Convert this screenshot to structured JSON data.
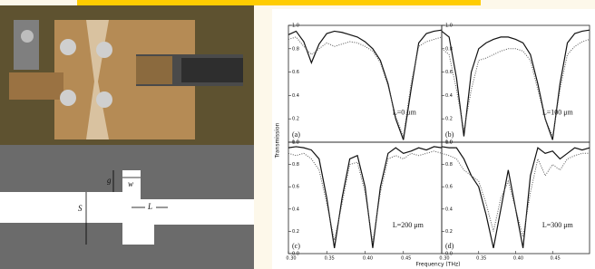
{
  "diagram": {
    "labels": {
      "gap": "g",
      "width": "w",
      "spacing": "S",
      "offset": "L"
    }
  },
  "figure_axes": {
    "y_label": "Transmission",
    "x_label": "Frequency (THz)"
  },
  "chart_data": [
    {
      "type": "line",
      "panel_label": "(a)",
      "annotation": "L=0 μm",
      "x": [
        0.3,
        0.31,
        0.32,
        0.33,
        0.34,
        0.35,
        0.36,
        0.37,
        0.38,
        0.39,
        0.4,
        0.41,
        0.42,
        0.43,
        0.44,
        0.45,
        0.46,
        0.47,
        0.48,
        0.49,
        0.5
      ],
      "series": [
        {
          "color": "#111111",
          "style": "solid",
          "values": [
            0.92,
            0.95,
            0.86,
            0.68,
            0.84,
            0.93,
            0.95,
            0.94,
            0.92,
            0.9,
            0.86,
            0.8,
            0.7,
            0.5,
            0.2,
            0.02,
            0.45,
            0.85,
            0.93,
            0.95,
            0.96
          ]
        },
        {
          "color": "#555555",
          "style": "dotted",
          "values": [
            0.88,
            0.9,
            0.82,
            0.75,
            0.8,
            0.85,
            0.82,
            0.84,
            0.86,
            0.85,
            0.82,
            0.78,
            0.68,
            0.48,
            0.22,
            0.05,
            0.5,
            0.82,
            0.86,
            0.88,
            0.9
          ]
        }
      ],
      "xlim": [
        0.3,
        0.5
      ],
      "ylim": [
        0,
        1
      ],
      "yticks": [
        {
          "value": 0,
          "label": "0.0"
        },
        0.2,
        0.4,
        0.6,
        0.8,
        {
          "value": 1,
          "label": "1.0"
        }
      ]
    },
    {
      "type": "line",
      "panel_label": "(b)",
      "annotation": "L=100 μm",
      "x": [
        0.3,
        0.31,
        0.32,
        0.33,
        0.34,
        0.35,
        0.36,
        0.37,
        0.38,
        0.39,
        0.4,
        0.41,
        0.42,
        0.43,
        0.44,
        0.45,
        0.46,
        0.47,
        0.48,
        0.49,
        0.5
      ],
      "series": [
        {
          "color": "#111111",
          "style": "solid",
          "values": [
            0.95,
            0.9,
            0.55,
            0.05,
            0.6,
            0.8,
            0.85,
            0.88,
            0.9,
            0.9,
            0.88,
            0.85,
            0.75,
            0.5,
            0.2,
            0.02,
            0.5,
            0.85,
            0.93,
            0.95,
            0.96
          ]
        },
        {
          "color": "#555555",
          "style": "dotted",
          "values": [
            0.8,
            0.75,
            0.45,
            0.1,
            0.45,
            0.7,
            0.72,
            0.75,
            0.78,
            0.8,
            0.8,
            0.78,
            0.7,
            0.45,
            0.2,
            0.05,
            0.45,
            0.75,
            0.82,
            0.86,
            0.88
          ]
        }
      ],
      "xlim": [
        0.3,
        0.5
      ],
      "ylim": [
        0,
        1
      ],
      "yticks": [
        {
          "value": 0,
          "label": "0.0"
        },
        0.2,
        0.4,
        0.6,
        0.8,
        {
          "value": 1,
          "label": "1.0"
        }
      ]
    },
    {
      "type": "line",
      "panel_label": "(c)",
      "annotation": "L=200 μm",
      "x": [
        0.3,
        0.31,
        0.32,
        0.33,
        0.34,
        0.35,
        0.36,
        0.37,
        0.38,
        0.39,
        0.4,
        0.41,
        0.42,
        0.43,
        0.44,
        0.45,
        0.46,
        0.47,
        0.48,
        0.49,
        0.5
      ],
      "series": [
        {
          "color": "#111111",
          "style": "solid",
          "values": [
            0.95,
            0.96,
            0.95,
            0.93,
            0.85,
            0.5,
            0.05,
            0.5,
            0.85,
            0.88,
            0.6,
            0.05,
            0.6,
            0.9,
            0.95,
            0.9,
            0.92,
            0.95,
            0.93,
            0.96,
            0.95
          ]
        },
        {
          "color": "#555555",
          "style": "dotted",
          "values": [
            0.9,
            0.88,
            0.9,
            0.85,
            0.75,
            0.45,
            0.12,
            0.45,
            0.8,
            0.82,
            0.55,
            0.1,
            0.55,
            0.85,
            0.88,
            0.85,
            0.9,
            0.88,
            0.9,
            0.92,
            0.9
          ]
        }
      ],
      "xlim": [
        0.3,
        0.5
      ],
      "ylim": [
        0,
        1
      ],
      "yticks": [
        {
          "value": 0,
          "label": "0.0"
        },
        0.2,
        0.4,
        0.6,
        0.8,
        {
          "value": 1,
          "label": "1.0"
        }
      ],
      "xticks": [
        {
          "value": 0.3,
          "label": "0.30"
        },
        0.35,
        {
          "value": 0.4,
          "label": "0.40"
        },
        0.45
      ]
    },
    {
      "type": "line",
      "panel_label": "(d)",
      "annotation": "L=300 μm",
      "x": [
        0.3,
        0.31,
        0.32,
        0.33,
        0.34,
        0.35,
        0.36,
        0.37,
        0.38,
        0.39,
        0.4,
        0.41,
        0.42,
        0.43,
        0.44,
        0.45,
        0.46,
        0.47,
        0.48,
        0.49,
        0.5
      ],
      "series": [
        {
          "color": "#111111",
          "style": "solid",
          "values": [
            0.96,
            0.95,
            0.95,
            0.85,
            0.7,
            0.6,
            0.35,
            0.05,
            0.4,
            0.75,
            0.4,
            0.05,
            0.7,
            0.95,
            0.9,
            0.92,
            0.85,
            0.9,
            0.95,
            0.93,
            0.95
          ]
        },
        {
          "color": "#555555",
          "style": "dotted",
          "values": [
            0.9,
            0.88,
            0.85,
            0.75,
            0.7,
            0.65,
            0.45,
            0.2,
            0.5,
            0.65,
            0.4,
            0.15,
            0.55,
            0.85,
            0.7,
            0.8,
            0.75,
            0.85,
            0.88,
            0.9,
            0.9
          ]
        }
      ],
      "xlim": [
        0.3,
        0.5
      ],
      "ylim": [
        0,
        1
      ],
      "yticks": [
        {
          "value": 0,
          "label": "0.0"
        },
        0.2,
        0.4,
        0.6,
        0.8,
        {
          "value": 1,
          "label": "1.0"
        }
      ],
      "xticks": [
        {
          "value": 0.3,
          "label": "0.30"
        },
        0.35,
        {
          "value": 0.4,
          "label": "0.40"
        },
        0.45
      ]
    }
  ]
}
